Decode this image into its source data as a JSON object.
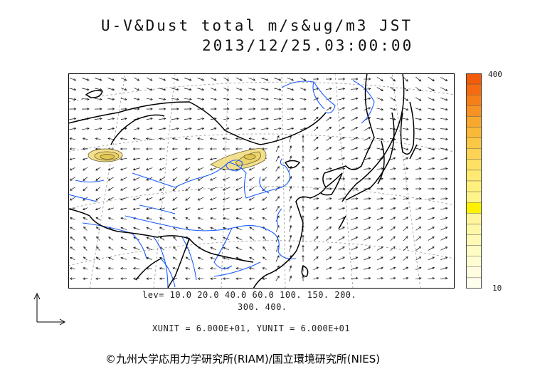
{
  "header": {
    "title": "U-V&Dust total m/s&ug/m3 JST",
    "timestamp": "2013/12/25.03:00:00"
  },
  "colorbar": {
    "max_label": "400",
    "min_label": "10",
    "colors": [
      "#f25c0a",
      "#f46b12",
      "#f5801a",
      "#f79224",
      "#f9a82e",
      "#fab838",
      "#fbc846",
      "#fcd354",
      "#fde064",
      "#feea72",
      "#fff07e",
      "#fff48c",
      "#fff200",
      "#fff59a",
      "#fff7a8",
      "#fff9b6",
      "#fffbc4",
      "#fffcd2",
      "#fffde0",
      "#fffeee"
    ]
  },
  "levels": {
    "line1": "lev= 10.0 20.0 40.0 60.0 100. 150. 200.",
    "line2": "300. 400."
  },
  "units": "XUNIT = 6.000E+01, YUNIT = 6.000E+01",
  "copyright": "©九州大学応用力学研究所(RIAM)/国立環境研究所(NIES)",
  "map_colors": {
    "coast": "#000000",
    "rivers": "#1a5cff",
    "graticule": "#999999",
    "dust_fill": "#f3e08e",
    "dust_line": "#6b6030"
  }
}
